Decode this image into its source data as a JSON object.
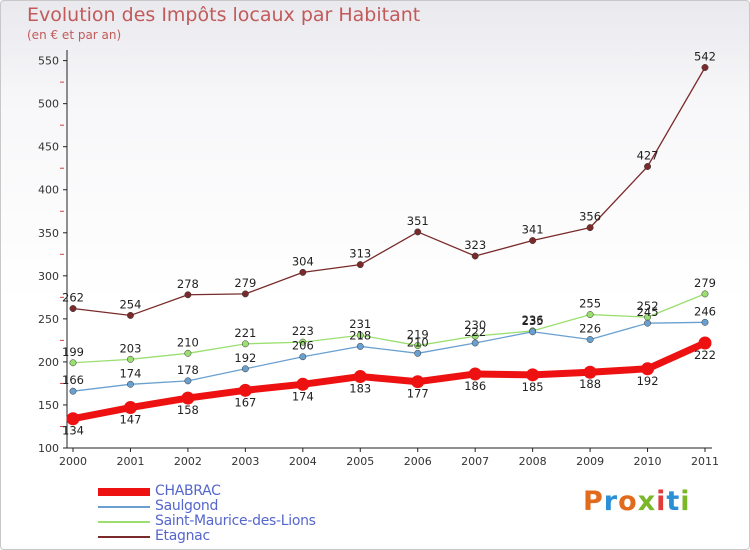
{
  "header": {
    "title": "Evolution des Impôts locaux par Habitant",
    "subtitle": "(en € et par an)"
  },
  "logo": {
    "text": "Proxiti",
    "letter_colors": [
      "#e26a1d",
      "#2a8fd6",
      "#e26a1d",
      "#7ab82a",
      "#e33a3a",
      "#2a8fd6",
      "#7ab82a"
    ]
  },
  "chart_data": {
    "type": "line",
    "title": "Evolution des Impôts locaux par Habitant",
    "subtitle": "(en € et par an)",
    "x": [
      "2000",
      "2001",
      "2002",
      "2003",
      "2004",
      "2005",
      "2006",
      "2007",
      "2008",
      "2009",
      "2010",
      "2011"
    ],
    "ylim": [
      100,
      560
    ],
    "yticks": [
      100,
      150,
      200,
      250,
      300,
      350,
      400,
      450,
      500,
      550
    ],
    "grid": false,
    "legend_position": "bottom-left",
    "series": [
      {
        "name": "CHABRAC",
        "color": "#ee1111",
        "values": [
          134,
          147,
          158,
          167,
          174,
          183,
          177,
          186,
          185,
          188,
          192,
          222
        ]
      },
      {
        "name": "Saulgond",
        "color": "#6aa0d0",
        "values": [
          166,
          174,
          178,
          192,
          206,
          218,
          210,
          222,
          235,
          226,
          245,
          246
        ]
      },
      {
        "name": "Saint-Maurice-des-Lions",
        "color": "#9adf70",
        "values": [
          199,
          203,
          210,
          221,
          223,
          231,
          219,
          230,
          236,
          255,
          252,
          279
        ]
      },
      {
        "name": "Etagnac",
        "color": "#7a2a2a",
        "values": [
          262,
          254,
          278,
          279,
          304,
          313,
          351,
          323,
          341,
          356,
          427,
          542
        ]
      }
    ]
  }
}
